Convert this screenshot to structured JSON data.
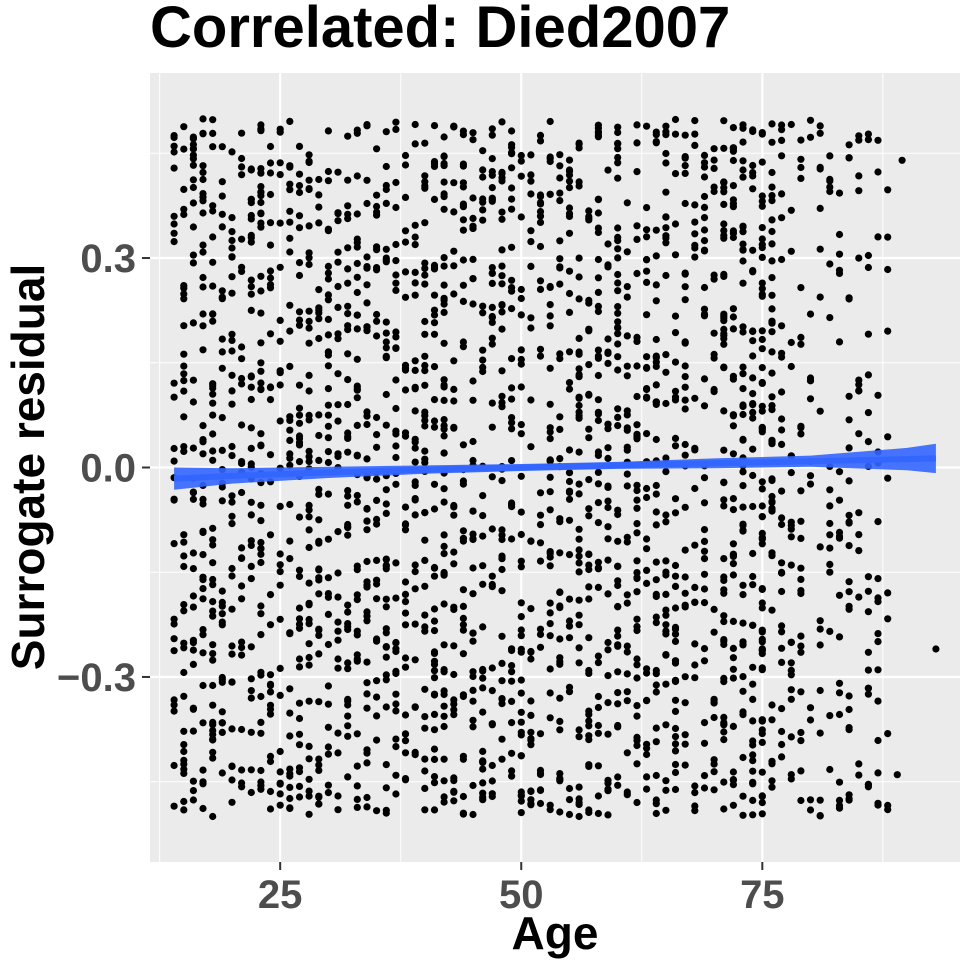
{
  "chart_data": {
    "type": "scatter",
    "title": "Correlated: Died2007",
    "xlabel": "Age",
    "ylabel": "Surrogate residual",
    "xlim": [
      11.5,
      95.5
    ],
    "ylim": [
      -0.565,
      0.565
    ],
    "x_ticks": [
      25,
      50,
      75
    ],
    "x_tick_labels": [
      "25",
      "50",
      "75"
    ],
    "y_ticks": [
      -0.3,
      0.0,
      0.3
    ],
    "y_tick_labels": [
      "−0.3",
      "0.0",
      "0.3"
    ],
    "grid": true,
    "panel_background": "#EBEBEB",
    "point_color": "#000000",
    "points_note_count": 2600,
    "x_range": [
      14,
      93
    ],
    "y_range": [
      -0.5,
      0.5
    ],
    "series": [
      {
        "kind": "points",
        "x_dense_range": [
          14,
          75
        ],
        "x_sparse_range": [
          75,
          93
        ],
        "y_range": [
          -0.5,
          0.5
        ],
        "outliers": [
          [
            89.5,
            0.44
          ],
          [
            88,
            0.33
          ],
          [
            89,
            -0.44
          ],
          [
            93,
            -0.26
          ],
          [
            88,
            -0.49
          ]
        ]
      },
      {
        "kind": "smooth",
        "color": "#3366FF",
        "x": [
          14,
          20,
          30,
          40,
          50,
          60,
          70,
          80,
          90,
          93
        ],
        "y": [
          -0.016,
          -0.012,
          -0.007,
          -0.003,
          0.0,
          0.003,
          0.006,
          0.009,
          0.012,
          0.013
        ],
        "ci_lower": [
          -0.032,
          -0.023,
          -0.015,
          -0.009,
          -0.005,
          -0.002,
          -0.001,
          0.001,
          -0.004,
          -0.008
        ],
        "ci_upper": [
          0.0,
          -0.001,
          0.001,
          0.003,
          0.005,
          0.008,
          0.013,
          0.017,
          0.028,
          0.034
        ]
      }
    ]
  }
}
